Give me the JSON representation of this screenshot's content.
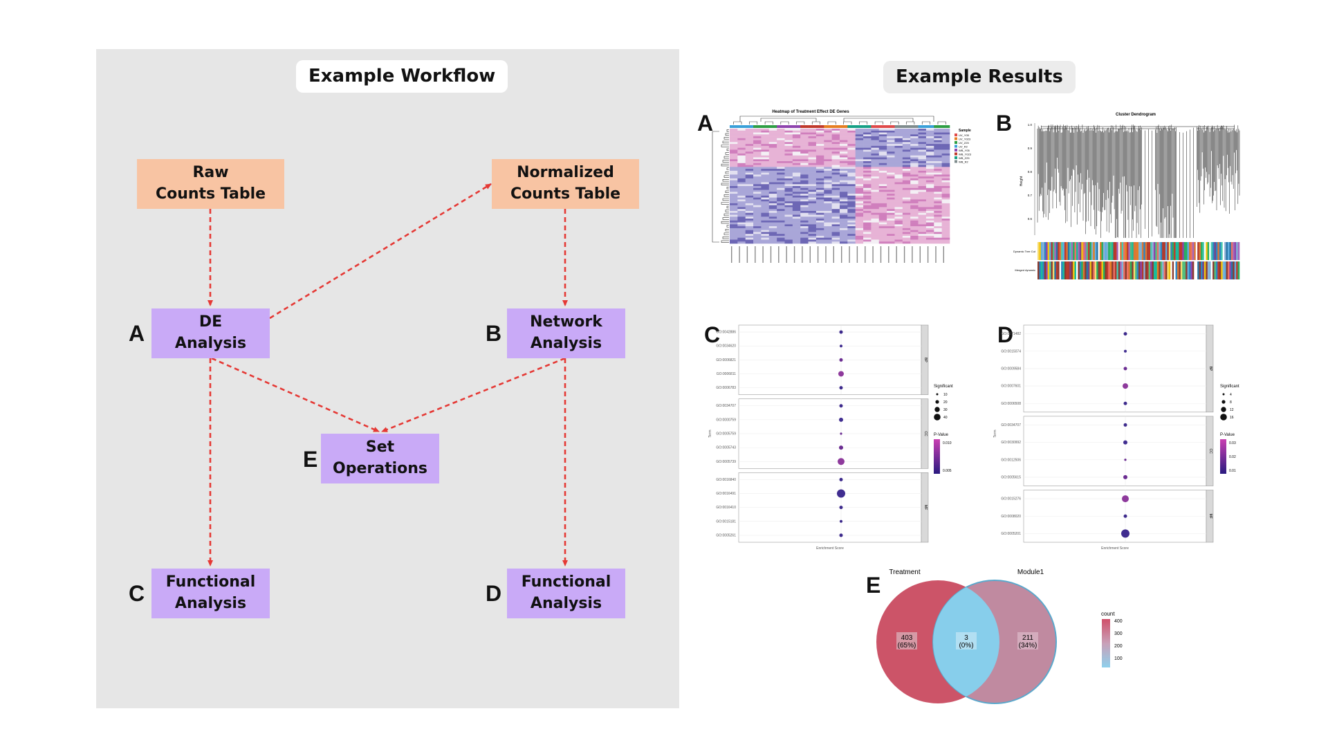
{
  "workflow": {
    "title": "Example Workflow",
    "boxes": {
      "raw": [
        "Raw",
        "Counts Table"
      ],
      "norm": [
        "Normalized",
        "Counts Table"
      ],
      "de": [
        "DE",
        "Analysis"
      ],
      "net": [
        "Network",
        "Analysis"
      ],
      "set": [
        "Set",
        "Operations"
      ],
      "func_c": [
        "Functional",
        "Analysis"
      ],
      "func_d": [
        "Functional",
        "Analysis"
      ]
    },
    "labels": {
      "a": "A",
      "b": "B",
      "c": "C",
      "d": "D",
      "e": "E"
    }
  },
  "results": {
    "title": "Example Results",
    "labels": {
      "a": "A",
      "b": "B",
      "c": "C",
      "d": "D",
      "e": "E"
    },
    "heatmap": {
      "title": "Heatmap of Treatment Effect DE Genes",
      "legend_title": "Sample",
      "legend_items": [
        "UV_Y05",
        "UV_Y023",
        "UV_Z25",
        "UV_R2",
        "WB_Y05",
        "WB_Y023",
        "WB_Z25",
        "WB_R2"
      ],
      "legend_colors": [
        "#e04a4a",
        "#e67e22",
        "#2e9e44",
        "#3aa0d8",
        "#8e44ad",
        "#c0392b",
        "#16a085",
        "#7f8c8d"
      ]
    },
    "dendro": {
      "title": "Cluster Dendrogram",
      "ylabel": "Height",
      "yticks": [
        "1.0",
        "0.9",
        "0.8",
        "0.7",
        "0.6"
      ],
      "bar1": "Dynamic Tree Cut",
      "bar2": "Merged dynamic"
    },
    "dotC": {
      "terms_bp": [
        "GO:0042886",
        "GO:0034620",
        "GO:0006821",
        "GO:0006811",
        "GO:0006783"
      ],
      "terms_cc": [
        "GO:0034707",
        "GO:0000759",
        "GO:0005759",
        "GO:0005743",
        "GO:0005739"
      ],
      "terms_mf": [
        "GO:0016840",
        "GO:0016491",
        "GO:0016410",
        "GO:0015181",
        "GO:0005261"
      ],
      "facets": [
        "BP",
        "CC",
        "MF"
      ],
      "ylabel": "Term",
      "xlabel": "Enrichment Score",
      "size_title": "Significant",
      "size_items": [
        "10",
        "20",
        "30",
        "40"
      ],
      "color_title": "P-Value",
      "color_ticks": [
        "0.010",
        "0.005"
      ]
    },
    "dotD": {
      "terms_bp": [
        "GO:0071482",
        "GO:0015074",
        "GO:0009584",
        "GO:0007601",
        "GO:0006508"
      ],
      "terms_cc": [
        "GO:0034707",
        "GO:0030992",
        "GO:0012506",
        "GO:0005615"
      ],
      "terms_mf": [
        "GO:0015276",
        "GO:0008020",
        "GO:0005201"
      ],
      "facets": [
        "BP",
        "CC",
        "MF"
      ],
      "ylabel": "Term",
      "xlabel": "Enrichment Score",
      "size_title": "Significant",
      "size_items": [
        "4",
        "8",
        "12",
        "16"
      ],
      "color_title": "P-Value",
      "color_ticks": [
        "0.03",
        "0.02",
        "0.01"
      ]
    },
    "venn": {
      "set1": "Treatment",
      "set2": "Module1",
      "regions": [
        {
          "count": "403",
          "pct": "(65%)"
        },
        {
          "count": "3",
          "pct": "(0%)"
        },
        {
          "count": "211",
          "pct": "(34%)"
        }
      ],
      "legend_title": "count",
      "legend_ticks": [
        "400",
        "300",
        "200",
        "100"
      ]
    }
  },
  "colors": {
    "arrow": "#e53935",
    "orange_box": "#f8c4a3",
    "purple_box": "#c9aaf7",
    "panel": "#e6e6e6"
  }
}
